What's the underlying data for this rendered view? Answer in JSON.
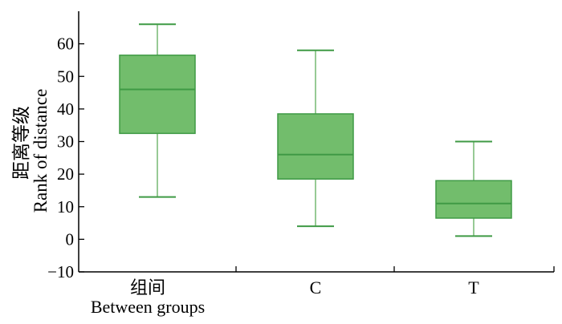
{
  "chart_data": {
    "type": "box",
    "ylabel_cn": "距离等级",
    "ylabel_en": "Rank of distance",
    "ylim": [
      -10,
      70
    ],
    "yticks": [
      -10,
      0,
      10,
      20,
      30,
      40,
      50,
      60
    ],
    "categories": [
      {
        "label": "组间",
        "sublabel": "Between groups",
        "min": 13,
        "q1": 32.5,
        "median": 46,
        "q3": 56.5,
        "max": 66
      },
      {
        "label": "C",
        "sublabel": "",
        "min": 4,
        "q1": 18.5,
        "median": 26,
        "q3": 38.5,
        "max": 58
      },
      {
        "label": "T",
        "sublabel": "",
        "min": 1,
        "q1": 6.5,
        "median": 11,
        "q3": 18,
        "max": 30
      }
    ],
    "colors": {
      "box_fill": "#72bd6c",
      "box_stroke": "#3f9a45"
    },
    "grid": false
  }
}
